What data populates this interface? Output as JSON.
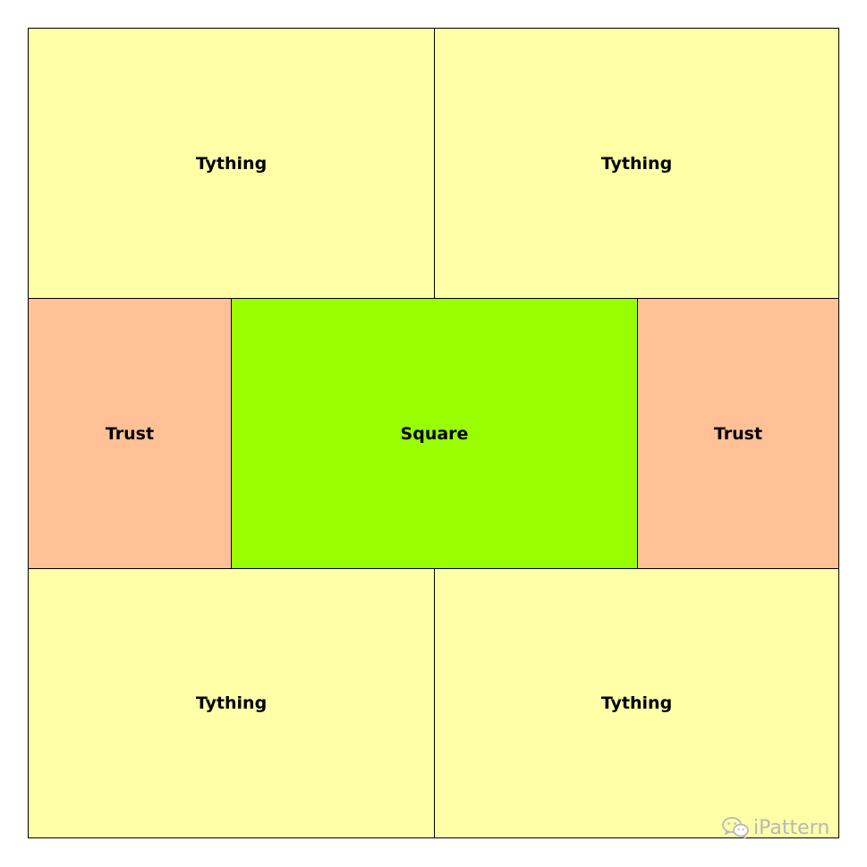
{
  "diagram": {
    "cells": {
      "tything_top_left": {
        "label": "Tything",
        "color": "#FFFFA8"
      },
      "tything_top_right": {
        "label": "Tything",
        "color": "#FFFFA8"
      },
      "trust_left": {
        "label": "Trust",
        "color": "#FFC195"
      },
      "square": {
        "label": "Square",
        "color": "#99FF00"
      },
      "trust_right": {
        "label": "Trust",
        "color": "#FFC195"
      },
      "tything_bottom_left": {
        "label": "Tything",
        "color": "#FFFFA8"
      },
      "tything_bottom_right": {
        "label": "Tything",
        "color": "#FFFFA8"
      }
    },
    "border_color": "#000000"
  },
  "watermark": {
    "icon": "wechat-icon",
    "text": "iPattern",
    "color": "#B8B8B8"
  }
}
